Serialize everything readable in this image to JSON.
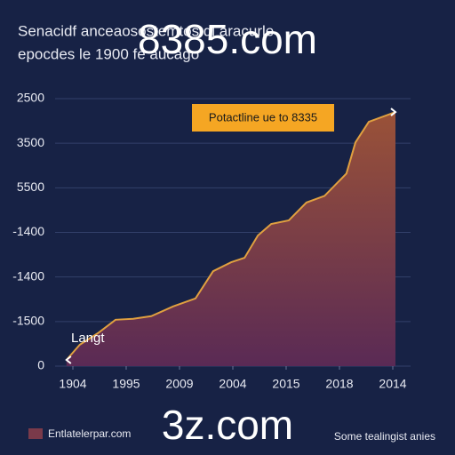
{
  "chart_data": {
    "type": "area",
    "title": "Senacidf anceaosostemtos di aracurle",
    "subtitle": "epocdes le 1900 fe aucago",
    "watermarks": [
      "8385.com",
      "3z.com"
    ],
    "annotation": "Potactline ue to 8335",
    "point_label": "Langt",
    "footnote": "Some tealingist anies",
    "x": [
      -0.12,
      0.13,
      0.47,
      0.8,
      1.13,
      1.47,
      1.88,
      2.3,
      2.63,
      2.97,
      3.22,
      3.47,
      3.72,
      4.05,
      4.38,
      4.72,
      5.13,
      5.3,
      5.55,
      6.05
    ],
    "series": [
      {
        "name": "Entlatelerpar.com",
        "color": "#e0a040",
        "values": [
          0.14,
          0.48,
          0.74,
          1.04,
          1.06,
          1.12,
          1.34,
          1.52,
          2.13,
          2.33,
          2.43,
          2.93,
          3.19,
          3.27,
          3.67,
          3.82,
          4.32,
          5.02,
          5.48,
          5.7
        ]
      }
    ],
    "xlim": [
      -0.2,
      6.1
    ],
    "xticks": [
      {
        "value": 0,
        "label": "1904"
      },
      {
        "value": 1,
        "label": "1995"
      },
      {
        "value": 2,
        "label": "2009"
      },
      {
        "value": 3,
        "label": "2004"
      },
      {
        "value": 4,
        "label": "2015"
      },
      {
        "value": 5,
        "label": "2018"
      },
      {
        "value": 6,
        "label": "2014"
      }
    ],
    "ylim": [
      0,
      6.1
    ],
    "yticks": [
      0,
      {
        "value": 1,
        "label": "-1500"
      },
      {
        "value": 2,
        "label": "-1400"
      },
      {
        "value": 3,
        "label": "-1400"
      },
      {
        "value": 4,
        "label": "5500"
      },
      {
        "value": 5,
        "label": "3500"
      },
      {
        "value": 6,
        "label": "2500"
      }
    ],
    "grid": true
  }
}
